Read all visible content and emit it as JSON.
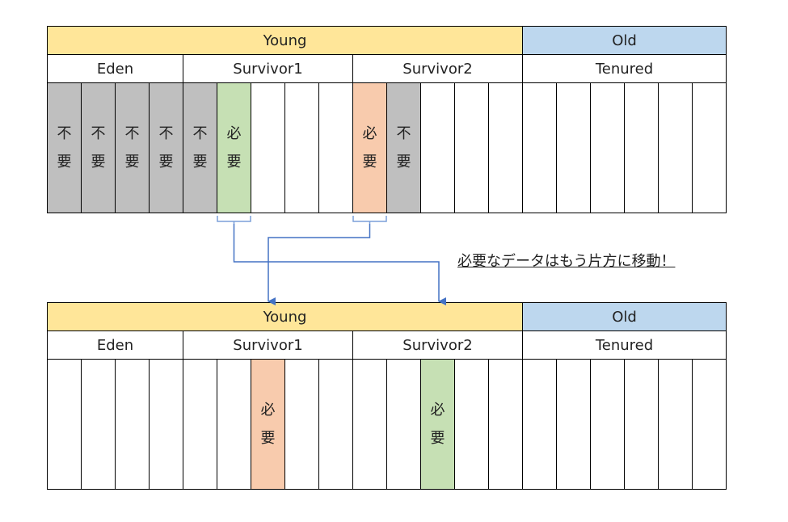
{
  "colors": {
    "young": "#FFE699",
    "old": "#BDD7EE",
    "unneeded": "#BFBFBF",
    "needed_green": "#C6E0B4",
    "needed_orange": "#F8CBAD",
    "arrow": "#4472C4"
  },
  "labels": {
    "young": "Young",
    "old": "Old",
    "eden": "Eden",
    "survivor1": "Survivor1",
    "survivor2": "Survivor2",
    "tenured": "Tenured"
  },
  "note": "必要なデータはもう片方に移動！",
  "before": {
    "cells": [
      {
        "fill": "unneeded",
        "text": "不要"
      },
      {
        "fill": "unneeded",
        "text": "不要"
      },
      {
        "fill": "unneeded",
        "text": "不要"
      },
      {
        "fill": "unneeded",
        "text": "不要"
      },
      {
        "fill": "unneeded",
        "text": "不要"
      },
      {
        "fill": "needed_green",
        "text": "必要"
      },
      {
        "fill": "empty",
        "text": ""
      },
      {
        "fill": "empty",
        "text": ""
      },
      {
        "fill": "empty",
        "text": ""
      },
      {
        "fill": "needed_orange",
        "text": "必要"
      },
      {
        "fill": "unneeded",
        "text": "不要"
      },
      {
        "fill": "empty",
        "text": ""
      },
      {
        "fill": "empty",
        "text": ""
      },
      {
        "fill": "empty",
        "text": ""
      },
      {
        "fill": "empty",
        "text": ""
      },
      {
        "fill": "empty",
        "text": ""
      },
      {
        "fill": "empty",
        "text": ""
      },
      {
        "fill": "empty",
        "text": ""
      },
      {
        "fill": "empty",
        "text": ""
      },
      {
        "fill": "empty",
        "text": ""
      }
    ]
  },
  "after": {
    "cells": [
      {
        "fill": "empty",
        "text": ""
      },
      {
        "fill": "empty",
        "text": ""
      },
      {
        "fill": "empty",
        "text": ""
      },
      {
        "fill": "empty",
        "text": ""
      },
      {
        "fill": "empty",
        "text": ""
      },
      {
        "fill": "empty",
        "text": ""
      },
      {
        "fill": "needed_orange",
        "text": "必要"
      },
      {
        "fill": "empty",
        "text": ""
      },
      {
        "fill": "empty",
        "text": ""
      },
      {
        "fill": "empty",
        "text": ""
      },
      {
        "fill": "empty",
        "text": ""
      },
      {
        "fill": "needed_green",
        "text": "必要"
      },
      {
        "fill": "empty",
        "text": ""
      },
      {
        "fill": "empty",
        "text": ""
      },
      {
        "fill": "empty",
        "text": ""
      },
      {
        "fill": "empty",
        "text": ""
      },
      {
        "fill": "empty",
        "text": ""
      },
      {
        "fill": "empty",
        "text": ""
      },
      {
        "fill": "empty",
        "text": ""
      },
      {
        "fill": "empty",
        "text": ""
      }
    ]
  }
}
